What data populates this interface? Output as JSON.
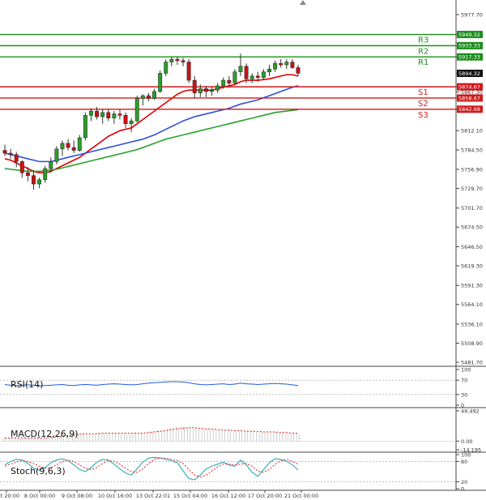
{
  "chart_data": {
    "type": "candlestick",
    "price_axis": {
      "ticks": [
        "5977.70",
        "5949.32",
        "5933.33",
        "5917.33",
        "5894.32",
        "5874.67",
        "5867.30",
        "5858.67",
        "5842.68",
        "5812.10",
        "5784.50",
        "5756.90",
        "5729.70",
        "5701.70",
        "5674.50",
        "5646.50",
        "5619.30",
        "5591.30",
        "5564.10",
        "5536.10",
        "5508.90",
        "5481.70"
      ],
      "range": [
        5477,
        5990
      ]
    },
    "time_axis": {
      "labels": [
        "Oct 20:00",
        "8 Oct 00:00",
        "9 Oct 08:00",
        "10 Oct 16:00",
        "13 Oct 22:01",
        "15 Oct 04:00",
        "16 Oct 12:00",
        "17 Oct 20:00",
        "21 Oct 00:00"
      ]
    },
    "current_price": "5894.32",
    "levels": [
      {
        "name": "R3",
        "value": 5949.32,
        "label": "5949.32",
        "color": "#1a8f1a"
      },
      {
        "name": "R2",
        "value": 5933.33,
        "label": "5933.33",
        "color": "#1a8f1a"
      },
      {
        "name": "R1",
        "value": 5917.33,
        "label": "5917.33",
        "color": "#1a8f1a"
      },
      {
        "name": "S1",
        "value": 5874.67,
        "label": "5874.67",
        "color": "#d11919"
      },
      {
        "name": "S2",
        "value": 5858.67,
        "label": "5858.67",
        "color": "#d11919"
      },
      {
        "name": "S3",
        "value": 5842.68,
        "label": "5842.68",
        "color": "#d11919"
      }
    ],
    "candles": [
      [
        5784,
        5792,
        5776,
        5780
      ],
      [
        5780,
        5786,
        5772,
        5778
      ],
      [
        5778,
        5782,
        5760,
        5768
      ],
      [
        5768,
        5770,
        5745,
        5752
      ],
      [
        5752,
        5760,
        5740,
        5748
      ],
      [
        5748,
        5756,
        5728,
        5736
      ],
      [
        5736,
        5745,
        5730,
        5742
      ],
      [
        5742,
        5762,
        5738,
        5758
      ],
      [
        5758,
        5774,
        5752,
        5768
      ],
      [
        5768,
        5790,
        5764,
        5786
      ],
      [
        5786,
        5798,
        5776,
        5794
      ],
      [
        5794,
        5800,
        5784,
        5788
      ],
      [
        5788,
        5798,
        5780,
        5784
      ],
      [
        5784,
        5806,
        5782,
        5802
      ],
      [
        5802,
        5838,
        5798,
        5834
      ],
      [
        5834,
        5844,
        5826,
        5840
      ],
      [
        5840,
        5846,
        5828,
        5832
      ],
      [
        5832,
        5842,
        5822,
        5838
      ],
      [
        5838,
        5842,
        5826,
        5830
      ],
      [
        5830,
        5840,
        5822,
        5836
      ],
      [
        5836,
        5842,
        5828,
        5834
      ],
      [
        5834,
        5838,
        5816,
        5822
      ],
      [
        5822,
        5830,
        5810,
        5826
      ],
      [
        5826,
        5862,
        5824,
        5858
      ],
      [
        5858,
        5864,
        5848,
        5862
      ],
      [
        5862,
        5866,
        5854,
        5858
      ],
      [
        5858,
        5872,
        5856,
        5868
      ],
      [
        5868,
        5898,
        5866,
        5894
      ],
      [
        5894,
        5914,
        5890,
        5910
      ],
      [
        5910,
        5918,
        5904,
        5914
      ],
      [
        5914,
        5918,
        5906,
        5912
      ],
      [
        5912,
        5916,
        5904,
        5910
      ],
      [
        5910,
        5914,
        5880,
        5884
      ],
      [
        5884,
        5890,
        5858,
        5866
      ],
      [
        5866,
        5878,
        5860,
        5872
      ],
      [
        5872,
        5876,
        5860,
        5868
      ],
      [
        5868,
        5874,
        5862,
        5870
      ],
      [
        5870,
        5880,
        5866,
        5876
      ],
      [
        5876,
        5888,
        5872,
        5884
      ],
      [
        5884,
        5890,
        5876,
        5880
      ],
      [
        5880,
        5900,
        5878,
        5896
      ],
      [
        5896,
        5922,
        5890,
        5904
      ],
      [
        5904,
        5908,
        5880,
        5886
      ],
      [
        5886,
        5894,
        5880,
        5890
      ],
      [
        5890,
        5896,
        5882,
        5888
      ],
      [
        5888,
        5900,
        5884,
        5896
      ],
      [
        5896,
        5906,
        5890,
        5900
      ],
      [
        5900,
        5912,
        5896,
        5908
      ],
      [
        5908,
        5914,
        5902,
        5906
      ],
      [
        5906,
        5914,
        5900,
        5910
      ],
      [
        5910,
        5914,
        5900,
        5902
      ],
      [
        5902,
        5906,
        5890,
        5894
      ]
    ],
    "moving_averages": [
      {
        "color": "#e00000",
        "values": [
          5772,
          5770,
          5766,
          5762,
          5758,
          5754,
          5752,
          5752,
          5754,
          5758,
          5762,
          5766,
          5770,
          5774,
          5780,
          5786,
          5792,
          5798,
          5804,
          5808,
          5812,
          5814,
          5816,
          5822,
          5828,
          5834,
          5840,
          5846,
          5852,
          5858,
          5864,
          5868,
          5870,
          5870,
          5870,
          5870,
          5870,
          5872,
          5874,
          5876,
          5878,
          5882,
          5884,
          5884,
          5884,
          5885,
          5886,
          5888,
          5890,
          5892,
          5892,
          5890
        ]
      },
      {
        "color": "#2f4fd8",
        "values": [
          5780,
          5778,
          5776,
          5774,
          5772,
          5770,
          5768,
          5768,
          5768,
          5770,
          5772,
          5774,
          5776,
          5778,
          5780,
          5782,
          5784,
          5786,
          5788,
          5790,
          5792,
          5794,
          5796,
          5798,
          5800,
          5803,
          5806,
          5810,
          5814,
          5818,
          5822,
          5826,
          5829,
          5832,
          5834,
          5836,
          5838,
          5840,
          5842,
          5844,
          5847,
          5850,
          5852,
          5854,
          5856,
          5859,
          5862,
          5865,
          5868,
          5871,
          5874,
          5876
        ]
      },
      {
        "color": "#2aa02a",
        "values": [
          5758,
          5757,
          5756,
          5755,
          5754,
          5754,
          5754,
          5755,
          5756,
          5757,
          5759,
          5761,
          5763,
          5765,
          5767,
          5769,
          5771,
          5773,
          5775,
          5777,
          5779,
          5781,
          5783,
          5785,
          5788,
          5791,
          5794,
          5797,
          5800,
          5802,
          5804,
          5806,
          5808,
          5810,
          5812,
          5814,
          5816,
          5818,
          5820,
          5822,
          5824,
          5826,
          5828,
          5830,
          5832,
          5834,
          5836,
          5838,
          5839,
          5840,
          5841,
          5842
        ]
      }
    ],
    "indicators": [
      {
        "name": "RSI(14)",
        "ticks": [
          "100",
          "70",
          "30",
          "0"
        ],
        "range": [
          0,
          100
        ],
        "levels": [
          70,
          30
        ],
        "values": [
          58,
          56,
          55,
          56,
          57,
          56,
          54,
          55,
          56,
          57,
          58,
          56,
          55,
          57,
          58,
          57,
          56,
          58,
          59,
          60,
          59,
          58,
          57,
          58,
          60,
          62,
          63,
          64,
          65,
          66,
          66,
          65,
          63,
          60,
          58,
          57,
          58,
          59,
          60,
          58,
          59,
          62,
          60,
          59,
          58,
          59,
          60,
          61,
          60,
          59,
          57,
          55
        ]
      },
      {
        "name": "MACD(12,26,9)",
        "ticks": [
          "49.492",
          "0.00",
          "-14.195"
        ],
        "range": [
          -14.195,
          49.492
        ],
        "hist": [
          6,
          6,
          5,
          5,
          5,
          5,
          5,
          6,
          7,
          8,
          9,
          10,
          11,
          12,
          13,
          13,
          13,
          13,
          13,
          13,
          12,
          12,
          12,
          13,
          14,
          15,
          16,
          18,
          20,
          22,
          23,
          24,
          23,
          22,
          21,
          20,
          19,
          18,
          17,
          17,
          16,
          16,
          16,
          16,
          15,
          15,
          14,
          14,
          14,
          13,
          13,
          12
        ],
        "signal": [
          5,
          5,
          5,
          5,
          5,
          5,
          5,
          5,
          6,
          7,
          8,
          9,
          10,
          11,
          12,
          12,
          12,
          13,
          13,
          13,
          13,
          13,
          13,
          13,
          13,
          14,
          15,
          16,
          17,
          19,
          20,
          21,
          22,
          22,
          21,
          20,
          20,
          19,
          18,
          18,
          17,
          17,
          16,
          16,
          16,
          15,
          15,
          15,
          14,
          14,
          13,
          13
        ]
      },
      {
        "name": "Stoch(9,6,3)",
        "ticks": [
          "100",
          "80",
          "20",
          "0"
        ],
        "range": [
          0,
          100
        ],
        "levels": [
          80,
          20
        ],
        "k": [
          70,
          80,
          86,
          84,
          74,
          60,
          54,
          62,
          76,
          84,
          88,
          82,
          70,
          56,
          50,
          62,
          78,
          86,
          84,
          72,
          58,
          46,
          40,
          58,
          78,
          90,
          92,
          90,
          86,
          82,
          76,
          52,
          30,
          26,
          40,
          58,
          66,
          72,
          78,
          70,
          66,
          84,
          70,
          48,
          36,
          56,
          76,
          88,
          86,
          80,
          70,
          55
        ],
        "d": [
          66,
          72,
          78,
          82,
          80,
          74,
          66,
          60,
          62,
          70,
          80,
          84,
          80,
          70,
          60,
          56,
          62,
          74,
          82,
          80,
          72,
          60,
          50,
          48,
          58,
          74,
          86,
          90,
          90,
          86,
          82,
          74,
          56,
          40,
          34,
          40,
          52,
          64,
          72,
          72,
          70,
          72,
          74,
          66,
          52,
          48,
          56,
          72,
          82,
          86,
          80,
          72
        ]
      }
    ]
  }
}
